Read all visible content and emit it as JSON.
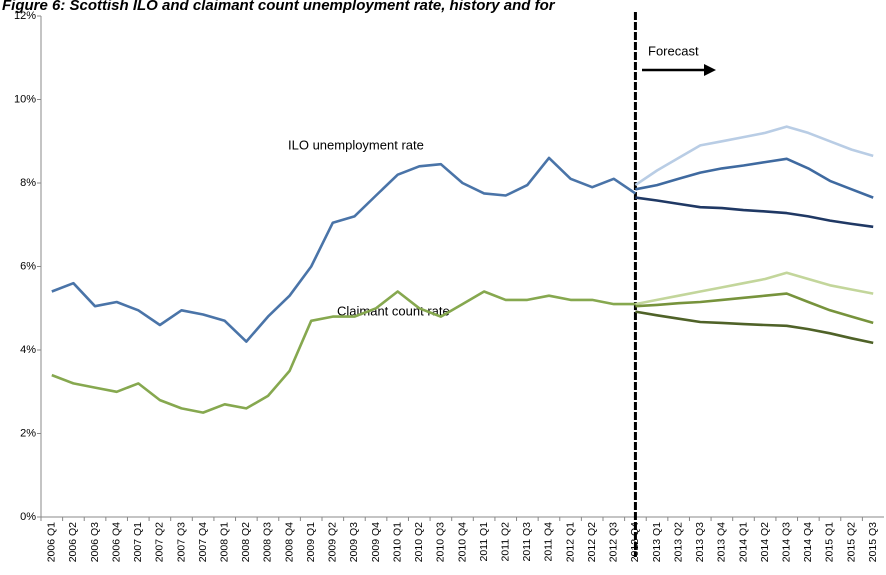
{
  "chart_data": {
    "type": "line",
    "title": "Figure 6: Scottish ILO and claimant count unemployment rate, history and for",
    "annotations": [
      "ILO unemployment  rate",
      "Claimant  count rate",
      "Forecast"
    ],
    "categories": [
      "2006 Q1",
      "2006 Q2",
      "2006 Q3",
      "2006 Q4",
      "2007 Q1",
      "2007 Q2",
      "2007 Q3",
      "2007 Q4",
      "2008 Q1",
      "2008 Q2",
      "2008 Q3",
      "2008 Q4",
      "2009 Q1",
      "2009 Q2",
      "2009 Q3",
      "2009 Q4",
      "2010 Q1",
      "2010 Q2",
      "2010 Q3",
      "2010 Q4",
      "2011 Q1",
      "2011 Q2",
      "2011 Q3",
      "2011 Q4",
      "2012 Q1",
      "2012 Q2",
      "2012 Q3",
      "2012 Q4",
      "2013 Q1",
      "2013 Q2",
      "2013 Q3",
      "2013 Q4",
      "2014 Q1",
      "2014 Q2",
      "2014 Q3",
      "2014 Q4",
      "2015 Q1",
      "2015 Q2",
      "2015 Q3"
    ],
    "series": [
      {
        "color": "#4a74a8",
        "values": [
          5.4,
          5.6,
          5.05,
          5.15,
          4.95,
          4.6,
          4.95,
          4.85,
          4.7,
          4.2,
          4.8,
          5.3,
          6.0,
          7.05,
          7.2,
          7.7,
          8.2,
          8.4,
          8.45,
          8.0,
          7.75,
          7.7,
          7.95,
          8.6,
          8.1,
          7.9,
          8.1,
          7.75,
          null,
          null,
          null,
          null,
          null,
          null,
          null,
          null,
          null,
          null,
          null
        ]
      },
      {
        "color": "#b9cde5",
        "values": [
          null,
          null,
          null,
          null,
          null,
          null,
          null,
          null,
          null,
          null,
          null,
          null,
          null,
          null,
          null,
          null,
          null,
          null,
          null,
          null,
          null,
          null,
          null,
          null,
          null,
          null,
          null,
          7.95,
          8.3,
          8.6,
          8.9,
          9.0,
          9.1,
          9.2,
          9.35,
          9.2,
          9.0,
          8.8,
          8.65
        ]
      },
      {
        "color": "#3f6aa0",
        "values": [
          null,
          null,
          null,
          null,
          null,
          null,
          null,
          null,
          null,
          null,
          null,
          null,
          null,
          null,
          null,
          null,
          null,
          null,
          null,
          null,
          null,
          null,
          null,
          null,
          null,
          null,
          null,
          7.85,
          7.95,
          8.1,
          8.25,
          8.35,
          8.42,
          8.5,
          8.58,
          8.35,
          8.05,
          7.85,
          7.65
        ]
      },
      {
        "color": "#1f3864",
        "values": [
          null,
          null,
          null,
          null,
          null,
          null,
          null,
          null,
          null,
          null,
          null,
          null,
          null,
          null,
          null,
          null,
          null,
          null,
          null,
          null,
          null,
          null,
          null,
          null,
          null,
          null,
          null,
          7.65,
          7.58,
          7.5,
          7.42,
          7.4,
          7.35,
          7.32,
          7.28,
          7.2,
          7.1,
          7.02,
          6.95
        ]
      },
      {
        "color": "#86a84f",
        "values": [
          3.4,
          3.2,
          3.1,
          3.0,
          3.2,
          2.8,
          2.6,
          2.5,
          2.7,
          2.6,
          2.9,
          3.5,
          4.7,
          4.8,
          4.8,
          5.0,
          5.4,
          5.0,
          4.8,
          5.1,
          5.4,
          5.2,
          5.2,
          5.3,
          5.2,
          5.2,
          5.1,
          5.1,
          null,
          null,
          null,
          null,
          null,
          null,
          null,
          null,
          null,
          null,
          null
        ]
      },
      {
        "color": "#c3d69b",
        "values": [
          null,
          null,
          null,
          null,
          null,
          null,
          null,
          null,
          null,
          null,
          null,
          null,
          null,
          null,
          null,
          null,
          null,
          null,
          null,
          null,
          null,
          null,
          null,
          null,
          null,
          null,
          null,
          5.1,
          5.2,
          5.3,
          5.4,
          5.5,
          5.6,
          5.7,
          5.85,
          5.7,
          5.55,
          5.45,
          5.35
        ]
      },
      {
        "color": "#77933c",
        "values": [
          null,
          null,
          null,
          null,
          null,
          null,
          null,
          null,
          null,
          null,
          null,
          null,
          null,
          null,
          null,
          null,
          null,
          null,
          null,
          null,
          null,
          null,
          null,
          null,
          null,
          null,
          null,
          5.05,
          5.08,
          5.12,
          5.15,
          5.2,
          5.25,
          5.3,
          5.35,
          5.15,
          4.95,
          4.8,
          4.65
        ]
      },
      {
        "color": "#4f6228",
        "values": [
          null,
          null,
          null,
          null,
          null,
          null,
          null,
          null,
          null,
          null,
          null,
          null,
          null,
          null,
          null,
          null,
          null,
          null,
          null,
          null,
          null,
          null,
          null,
          null,
          null,
          null,
          null,
          4.92,
          4.83,
          4.75,
          4.67,
          4.65,
          4.62,
          4.6,
          4.58,
          4.5,
          4.4,
          4.28,
          4.17
        ]
      }
    ],
    "ylim": [
      0,
      12
    ],
    "yticks": [
      {
        "value": 0,
        "label": "0%"
      },
      {
        "value": 2,
        "label": "2%"
      },
      {
        "value": 4,
        "label": "4%"
      },
      {
        "value": 6,
        "label": "6%"
      },
      {
        "value": 8,
        "label": "8%"
      },
      {
        "value": 10,
        "label": "10%"
      },
      {
        "value": 12,
        "label": "12%"
      }
    ],
    "grid": false
  }
}
